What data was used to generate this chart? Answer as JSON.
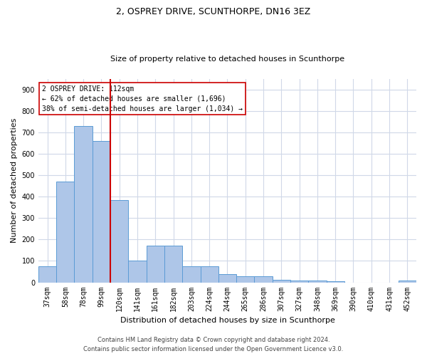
{
  "title1": "2, OSPREY DRIVE, SCUNTHORPE, DN16 3EZ",
  "title2": "Size of property relative to detached houses in Scunthorpe",
  "xlabel": "Distribution of detached houses by size in Scunthorpe",
  "ylabel": "Number of detached properties",
  "categories": [
    "37sqm",
    "58sqm",
    "78sqm",
    "99sqm",
    "120sqm",
    "141sqm",
    "161sqm",
    "182sqm",
    "203sqm",
    "224sqm",
    "244sqm",
    "265sqm",
    "286sqm",
    "307sqm",
    "327sqm",
    "348sqm",
    "369sqm",
    "390sqm",
    "410sqm",
    "431sqm",
    "452sqm"
  ],
  "values": [
    75,
    470,
    730,
    660,
    385,
    100,
    170,
    170,
    75,
    75,
    40,
    28,
    28,
    12,
    10,
    8,
    5,
    0,
    0,
    0,
    8
  ],
  "bar_color": "#aec6e8",
  "bar_edge_color": "#5b9bd5",
  "vline_x": 3.5,
  "vline_color": "#cc0000",
  "annotation_line1": "2 OSPREY DRIVE: 112sqm",
  "annotation_line2": "← 62% of detached houses are smaller (1,696)",
  "annotation_line3": "38% of semi-detached houses are larger (1,034) →",
  "annotation_box_color": "#ffffff",
  "annotation_box_edge_color": "#cc0000",
  "ylim": [
    0,
    950
  ],
  "yticks": [
    0,
    100,
    200,
    300,
    400,
    500,
    600,
    700,
    800,
    900
  ],
  "footer1": "Contains HM Land Registry data © Crown copyright and database right 2024.",
  "footer2": "Contains public sector information licensed under the Open Government Licence v3.0.",
  "background_color": "#ffffff",
  "grid_color": "#d0d8e8",
  "title1_fontsize": 9,
  "title2_fontsize": 8,
  "ylabel_fontsize": 8,
  "xlabel_fontsize": 8,
  "tick_fontsize": 7,
  "annotation_fontsize": 7,
  "footer_fontsize": 6
}
